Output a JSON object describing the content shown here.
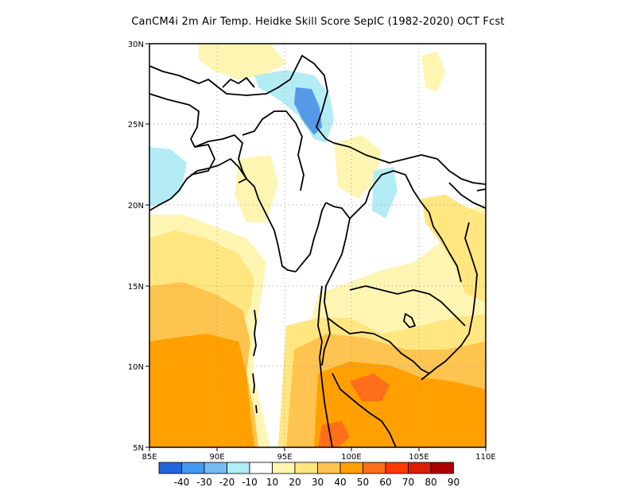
{
  "title": "CanCM4i  2m Air Temp. Heidke Skill Score SepIC (1982-2020) OCT Fcst",
  "axes": {
    "lon_labels": [
      "85E",
      "90E",
      "95E",
      "100E",
      "105E",
      "110E"
    ],
    "lat_labels": [
      "5N",
      "10N",
      "15N",
      "20N",
      "25N",
      "30N"
    ]
  },
  "colorbar": {
    "labels": [
      "-40",
      "-30",
      "-20",
      "-10",
      "10",
      "20",
      "30",
      "40",
      "50",
      "60",
      "70",
      "80",
      "90"
    ],
    "colors": [
      "#2266dd",
      "#4499ee",
      "#77bbf4",
      "#b0eef4",
      "#ffffff",
      "#fff5b3",
      "#ffe680",
      "#ffc44f",
      "#ffa000",
      "#ff6e1b",
      "#ff3800",
      "#dd1e00",
      "#aa0000"
    ]
  },
  "map": {
    "region": "Mainland Southeast Asia / Myanmar",
    "lon_range": [
      85,
      110
    ],
    "lat_range": [
      5,
      30
    ],
    "grid": true,
    "colors": {
      "neg_strong": "#5599e8",
      "neg_light": "#b3ecf4",
      "yellow_light": "#fff5b3",
      "yellow": "#ffe680",
      "orange_light": "#ffc44f",
      "orange": "#ffa000",
      "red_orange": "#ff6e1b"
    }
  }
}
